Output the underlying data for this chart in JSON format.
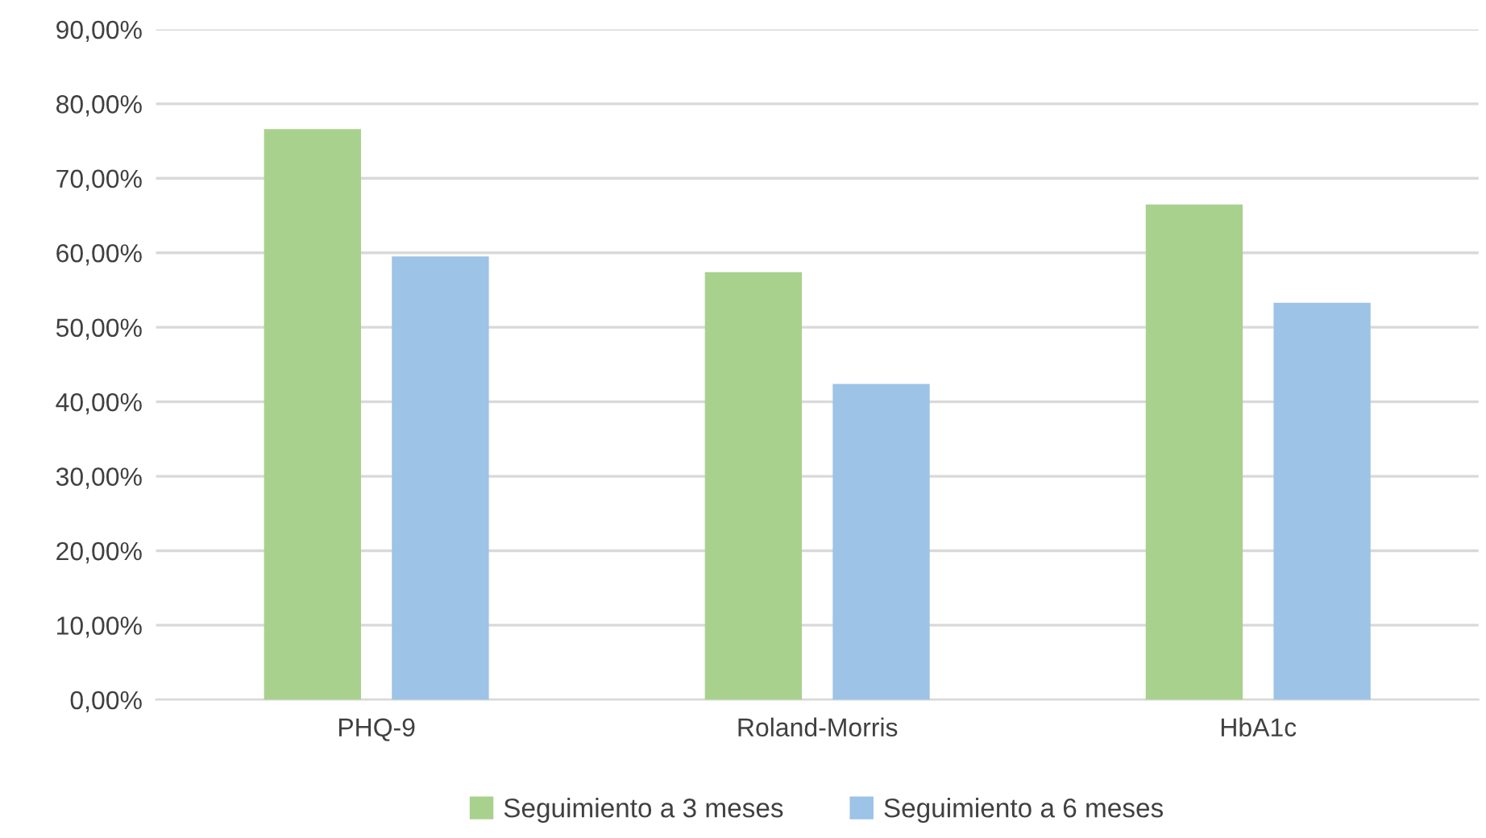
{
  "chart_data": {
    "type": "bar",
    "categories": [
      "PHQ-9",
      "Roland-Morris",
      "HbA1c"
    ],
    "series": [
      {
        "name": "Seguimiento a 3 meses",
        "color": "#a9d18e",
        "values": [
          76.6,
          57.4,
          66.5
        ]
      },
      {
        "name": "Seguimiento a 6 meses",
        "color": "#9dc3e6",
        "values": [
          59.5,
          42.4,
          53.3
        ]
      }
    ],
    "ylim": [
      0,
      90
    ],
    "yticks": [
      {
        "value": 0,
        "label": "0,00%"
      },
      {
        "value": 10,
        "label": "10,00%"
      },
      {
        "value": 20,
        "label": "20,00%"
      },
      {
        "value": 30,
        "label": "30,00%"
      },
      {
        "value": 40,
        "label": "40,00%"
      },
      {
        "value": 50,
        "label": "50,00%"
      },
      {
        "value": 60,
        "label": "60,00%"
      },
      {
        "value": 70,
        "label": "70,00%"
      },
      {
        "value": 80,
        "label": "80,00%"
      },
      {
        "value": 90,
        "label": "90,00%"
      }
    ],
    "grid": "y",
    "legend": "bottom"
  }
}
